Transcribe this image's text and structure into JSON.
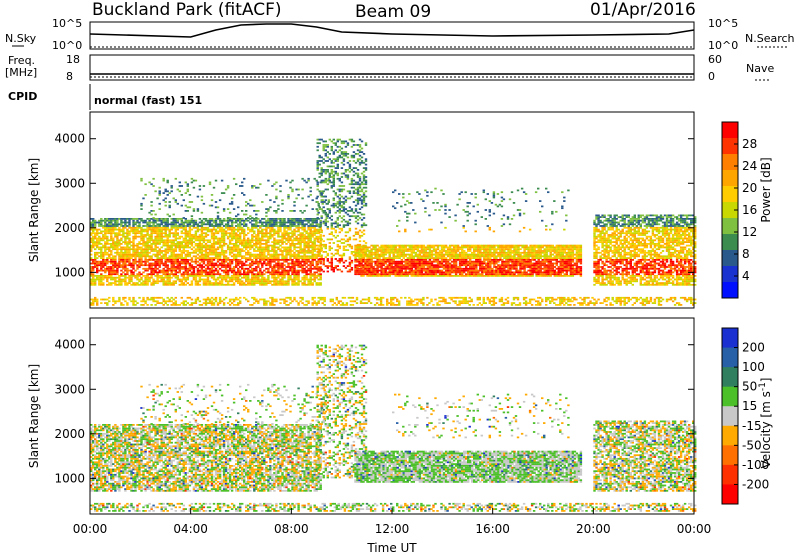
{
  "header": {
    "station": "Buckland Park (fitACF)",
    "beam": "Beam 09",
    "date": "01/Apr/2016"
  },
  "noise_panel": {
    "left_label": "N.Sky",
    "left_ticks": [
      "10^5",
      "10^0"
    ],
    "right_label": "N.Search",
    "right_ticks": [
      "10^5",
      "10^0"
    ],
    "trace": [
      [
        0,
        12
      ],
      [
        4,
        15
      ],
      [
        5,
        8
      ],
      [
        6,
        3
      ],
      [
        7,
        2
      ],
      [
        8,
        2
      ],
      [
        9,
        5
      ],
      [
        10,
        10
      ],
      [
        12,
        12
      ],
      [
        16,
        14
      ],
      [
        20,
        13
      ],
      [
        23,
        12
      ],
      [
        24,
        8
      ]
    ]
  },
  "freq_panel": {
    "left_label": "Freq.",
    "left_unit": "[MHz]",
    "left_ticks": [
      "18",
      "8"
    ],
    "right_label": "Nave",
    "right_ticks": [
      "60",
      "0"
    ]
  },
  "cpid": {
    "label": "CPID",
    "value": "normal (fast) 151"
  },
  "chart_data": [
    {
      "type": "heatmap",
      "name": "power",
      "ylabel": "Slant Range [km]",
      "ylim": [
        200,
        4600
      ],
      "yticks": [
        "1000",
        "2000",
        "3000",
        "4000"
      ],
      "xlim": [
        0,
        24
      ],
      "colorbar_label": "Power [dB]",
      "colorbar_ticks": [
        "28",
        "24",
        "20",
        "16",
        "12",
        "8",
        "4"
      ],
      "colorbar_colors": [
        "#ff0000",
        "#ff3300",
        "#ff7f00",
        "#ffa500",
        "#ffcc00",
        "#c8d800",
        "#7fc040",
        "#3c8c50",
        "#2a5a8c",
        "#1a32d0",
        "#0010ff"
      ]
    },
    {
      "type": "heatmap",
      "name": "velocity",
      "ylabel": "Slant Range [km]",
      "ylim": [
        200,
        4600
      ],
      "yticks": [
        "1000",
        "2000",
        "3000",
        "4000"
      ],
      "xlim": [
        0,
        24
      ],
      "xlabel": "Time UT",
      "xticks": [
        "00:00",
        "04:00",
        "08:00",
        "12:00",
        "16:00",
        "20:00",
        "00:00"
      ],
      "colorbar_label": "Velocity [m s",
      "colorbar_label_sup": "-1",
      "colorbar_label_end": "]",
      "colorbar_ticks": [
        "200",
        "100",
        "50",
        "15",
        "-15",
        "-50",
        "-100",
        "-200"
      ],
      "colorbar_colors": [
        "#1a30d0",
        "#2860a8",
        "#308060",
        "#4cc028",
        "#c8c8c8",
        "#ffaa00",
        "#ff7000",
        "#ff3000",
        "#ff0000"
      ]
    }
  ]
}
